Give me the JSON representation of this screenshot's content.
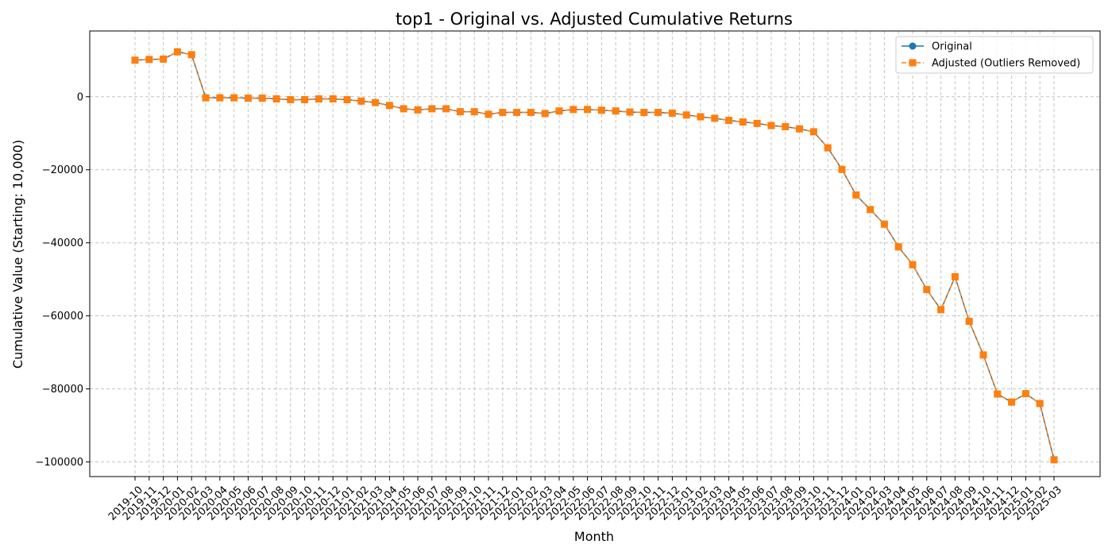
{
  "chart_data": {
    "type": "line",
    "title": "top1 - Original vs. Adjusted Cumulative Returns",
    "xlabel": "Month",
    "ylabel": "Cumulative Value (Starting: 10,000)",
    "ylim": [
      -104000,
      18000
    ],
    "yticks": [
      0,
      -20000,
      -40000,
      -60000,
      -80000,
      -100000
    ],
    "grid": true,
    "legend_position": "top-right",
    "categories": [
      "2019-10",
      "2019-11",
      "2019-12",
      "2020-01",
      "2020-02",
      "2020-03",
      "2020-04",
      "2020-05",
      "2020-06",
      "2020-07",
      "2020-08",
      "2020-09",
      "2020-10",
      "2020-11",
      "2020-12",
      "2021-01",
      "2021-02",
      "2021-03",
      "2021-04",
      "2021-05",
      "2021-06",
      "2021-07",
      "2021-08",
      "2021-09",
      "2021-10",
      "2021-11",
      "2021-12",
      "2022-01",
      "2022-02",
      "2022-03",
      "2022-04",
      "2022-05",
      "2022-06",
      "2022-07",
      "2022-08",
      "2022-09",
      "2022-10",
      "2022-11",
      "2022-12",
      "2023-01",
      "2023-02",
      "2023-03",
      "2023-04",
      "2023-05",
      "2023-06",
      "2023-07",
      "2023-08",
      "2023-09",
      "2023-10",
      "2023-11",
      "2023-12",
      "2024-01",
      "2024-02",
      "2024-03",
      "2024-04",
      "2024-05",
      "2024-06",
      "2024-07",
      "2024-08",
      "2024-09",
      "2024-10",
      "2024-11",
      "2024-12",
      "2025-01",
      "2025-02",
      "2025-03"
    ],
    "series": [
      {
        "name": "Original",
        "color": "#1f77b4",
        "marker": "circle",
        "line_style": "solid",
        "values": [
          10000,
          10200,
          10300,
          12300,
          11500,
          -300,
          -300,
          -300,
          -400,
          -400,
          -600,
          -800,
          -800,
          -600,
          -600,
          -800,
          -1200,
          -1600,
          -2400,
          -3300,
          -3600,
          -3300,
          -3300,
          -4100,
          -4100,
          -4800,
          -4300,
          -4300,
          -4300,
          -4600,
          -3900,
          -3500,
          -3500,
          -3700,
          -3900,
          -4200,
          -4300,
          -4300,
          -4500,
          -5000,
          -5500,
          -5900,
          -6500,
          -6900,
          -7300,
          -7900,
          -8200,
          -8800,
          -9600,
          -14000,
          -19900,
          -26900,
          -30900,
          -34900,
          -41100,
          -46000,
          -52800,
          -58300,
          -49300,
          -61500,
          -70700,
          -81400,
          -83600,
          -81300,
          -84000,
          -99400
        ]
      },
      {
        "name": "Adjusted (Outliers Removed)",
        "color": "#ff7f0e",
        "marker": "square",
        "line_style": "dashed",
        "values": [
          10000,
          10200,
          10300,
          12300,
          11500,
          -300,
          -300,
          -300,
          -400,
          -400,
          -600,
          -800,
          -800,
          -600,
          -600,
          -800,
          -1200,
          -1600,
          -2400,
          -3300,
          -3600,
          -3300,
          -3300,
          -4100,
          -4100,
          -4800,
          -4300,
          -4300,
          -4300,
          -4600,
          -3900,
          -3500,
          -3500,
          -3700,
          -3900,
          -4200,
          -4300,
          -4300,
          -4500,
          -5000,
          -5500,
          -5900,
          -6500,
          -6900,
          -7300,
          -7900,
          -8200,
          -8800,
          -9600,
          -14000,
          -19900,
          -26900,
          -30900,
          -34900,
          -41100,
          -46000,
          -52800,
          -58300,
          -49300,
          -61500,
          -70700,
          -81400,
          -83600,
          -81300,
          -84000,
          -99400
        ]
      }
    ]
  }
}
